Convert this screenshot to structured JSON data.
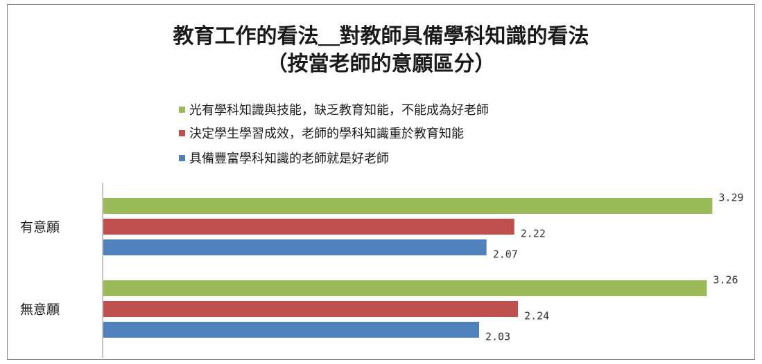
{
  "chart_data": {
    "type": "bar",
    "orientation": "horizontal",
    "title": "教育工作的看法＿對教師具備學科知識的看法",
    "subtitle": "（按當老師的意願區分）",
    "categories": [
      "有意願",
      "無意願"
    ],
    "series": [
      {
        "name": "光有學科知識與技能，缺乏教育知能，不能成為好老師",
        "values": [
          3.29,
          3.26
        ],
        "color": "#9bbb59"
      },
      {
        "name": "決定學生學習成效，老師的學科知識重於教育知能",
        "values": [
          2.22,
          2.24
        ],
        "color": "#c0504d"
      },
      {
        "name": "具備豐富學科知識的老師就是好老師",
        "values": [
          2.07,
          2.03
        ],
        "color": "#4f81bd"
      }
    ],
    "xlim": [
      0,
      3.5
    ],
    "grid": false,
    "legend_position": "top"
  }
}
